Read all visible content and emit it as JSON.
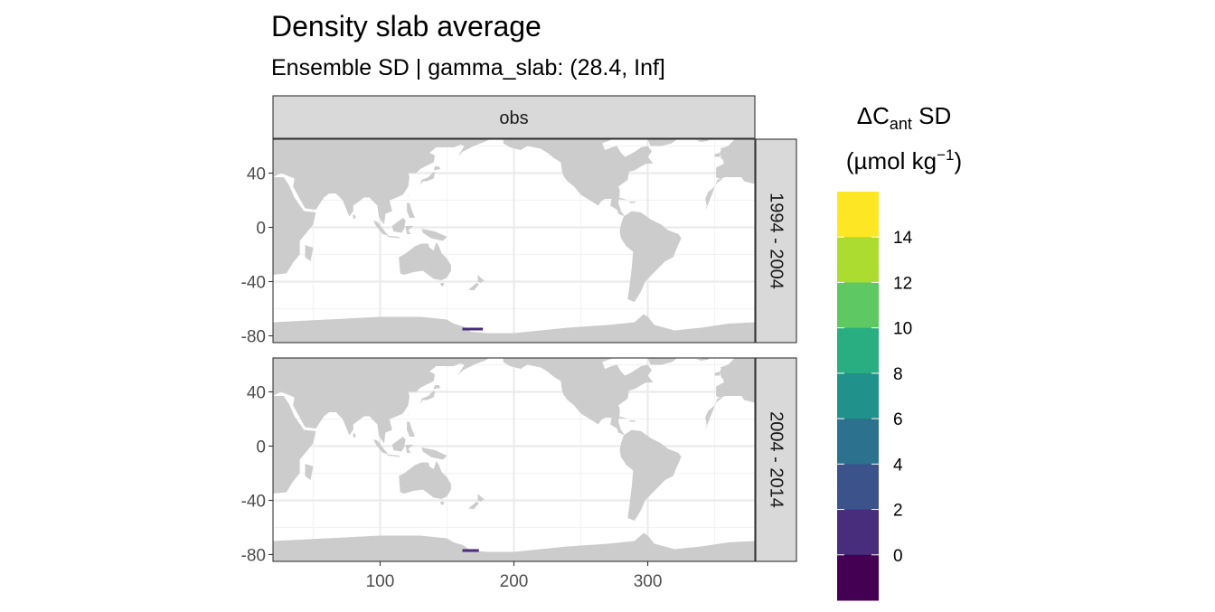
{
  "chart_data": {
    "type": "heatmap",
    "title": "Density slab average",
    "subtitle": "Ensemble SD | gamma_slab: (28.4, Inf]",
    "column_strip": "obs",
    "panels": [
      {
        "label": "1994 - 2004",
        "cells": [
          {
            "lon": 163,
            "lat": -75,
            "value": 1
          },
          {
            "lon": 166,
            "lat": -75,
            "value": 1
          },
          {
            "lon": 169,
            "lat": -75,
            "value": 1
          },
          {
            "lon": 172,
            "lat": -75,
            "value": 1
          },
          {
            "lon": 175,
            "lat": -75,
            "value": 1
          }
        ]
      },
      {
        "label": "2004 - 2014",
        "cells": [
          {
            "lon": 163,
            "lat": -77,
            "value": 1
          },
          {
            "lon": 166,
            "lat": -77,
            "value": 1
          },
          {
            "lon": 169,
            "lat": -77,
            "value": 1
          },
          {
            "lon": 172,
            "lat": -77,
            "value": 1
          }
        ]
      }
    ],
    "x_ticks": [
      "100",
      "200",
      "300"
    ],
    "x_tick_values": [
      100,
      200,
      300
    ],
    "y_ticks": [
      "40",
      "0",
      "-40",
      "-80"
    ],
    "y_tick_values": [
      40,
      0,
      -40,
      -80
    ],
    "xlim": [
      20,
      380
    ],
    "ylim": [
      -85,
      65
    ],
    "grid": true,
    "land_color": "#cccccc",
    "legend": {
      "title_symbol": "ΔC",
      "title_sub": "ant",
      "title_suffix": " SD",
      "unit_prefix": "(µmol kg",
      "unit_sup": "−1",
      "unit_suffix": ")",
      "placement": "right",
      "breaks": [
        "0",
        "2",
        "4",
        "6",
        "8",
        "10",
        "12",
        "14"
      ],
      "colors": [
        "#440154",
        "#472d7b",
        "#3b528b",
        "#2c728e",
        "#21918c",
        "#28ae80",
        "#5ec962",
        "#addc30",
        "#fde725"
      ]
    }
  }
}
